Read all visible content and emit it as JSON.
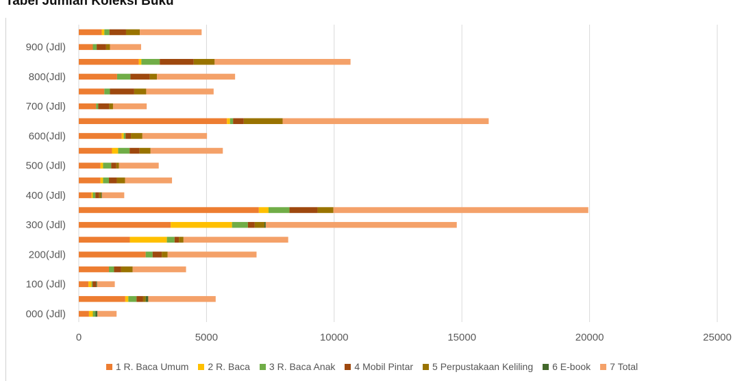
{
  "title": "Tabel Jumlah Koleksi Buku",
  "chart_data": {
    "type": "bar",
    "orientation": "horizontal",
    "stacked": true,
    "title": "",
    "xlabel": "",
    "ylabel": "",
    "xlim": [
      0,
      25000
    ],
    "xticks": [
      "0",
      "5000",
      "10000",
      "15000",
      "20000",
      "25000"
    ],
    "categories": [
      "000 (Jdl)",
      "",
      "100 (Jdl)",
      "",
      "200(Jdl)",
      "",
      "300 (Jdl)",
      "",
      "400 (Jdl)",
      "",
      "500 (Jdl)",
      "",
      "600(Jdl)",
      "",
      "700 (Jdl)",
      "",
      "800(Jdl)",
      "",
      "900 (Jdl)",
      ""
    ],
    "grid": true,
    "legend_position": "bottom",
    "series": [
      {
        "name": "1 R. Baca Umum",
        "color": "#ED7D31",
        "values": [
          400,
          1820,
          380,
          1180,
          2620,
          2000,
          3600,
          7050,
          500,
          850,
          850,
          1300,
          1680,
          5800,
          680,
          1000,
          1500,
          2350,
          550,
          900
        ]
      },
      {
        "name": "2 R. Baca",
        "color": "#FFC000",
        "values": [
          150,
          120,
          120,
          0,
          0,
          1450,
          2400,
          380,
          50,
          100,
          100,
          240,
          80,
          120,
          0,
          0,
          0,
          100,
          0,
          100
        ]
      },
      {
        "name": "3 R. Baca Anak",
        "color": "#70AD47",
        "values": [
          100,
          320,
          40,
          200,
          270,
          300,
          620,
          820,
          100,
          230,
          320,
          450,
          70,
          120,
          80,
          220,
          520,
          720,
          150,
          200
        ]
      },
      {
        "name": "4 Mobil Pintar",
        "color": "#9E480E",
        "values": [
          0,
          260,
          140,
          280,
          360,
          170,
          270,
          1100,
          150,
          310,
          200,
          390,
          210,
          420,
          430,
          950,
          760,
          1330,
          370,
          650
        ]
      },
      {
        "name": "5 Perpustakaan Keliling",
        "color": "#997300",
        "values": [
          0,
          100,
          0,
          450,
          230,
          180,
          380,
          620,
          70,
          320,
          100,
          430,
          450,
          1520,
          150,
          470,
          280,
          820,
          150,
          540
        ]
      },
      {
        "name": "6 E-book",
        "color": "#43682B",
        "values": [
          80,
          100,
          30,
          0,
          0,
          0,
          50,
          0,
          30,
          0,
          0,
          0,
          0,
          0,
          0,
          0,
          0,
          0,
          0,
          0
        ]
      },
      {
        "name": "7 Total",
        "color": "#F4A169",
        "values": [
          750,
          2640,
          700,
          2090,
          3480,
          4100,
          7480,
          9980,
          880,
          1840,
          1560,
          2830,
          2530,
          8070,
          1320,
          2640,
          3060,
          5320,
          1220,
          2420
        ]
      }
    ]
  }
}
